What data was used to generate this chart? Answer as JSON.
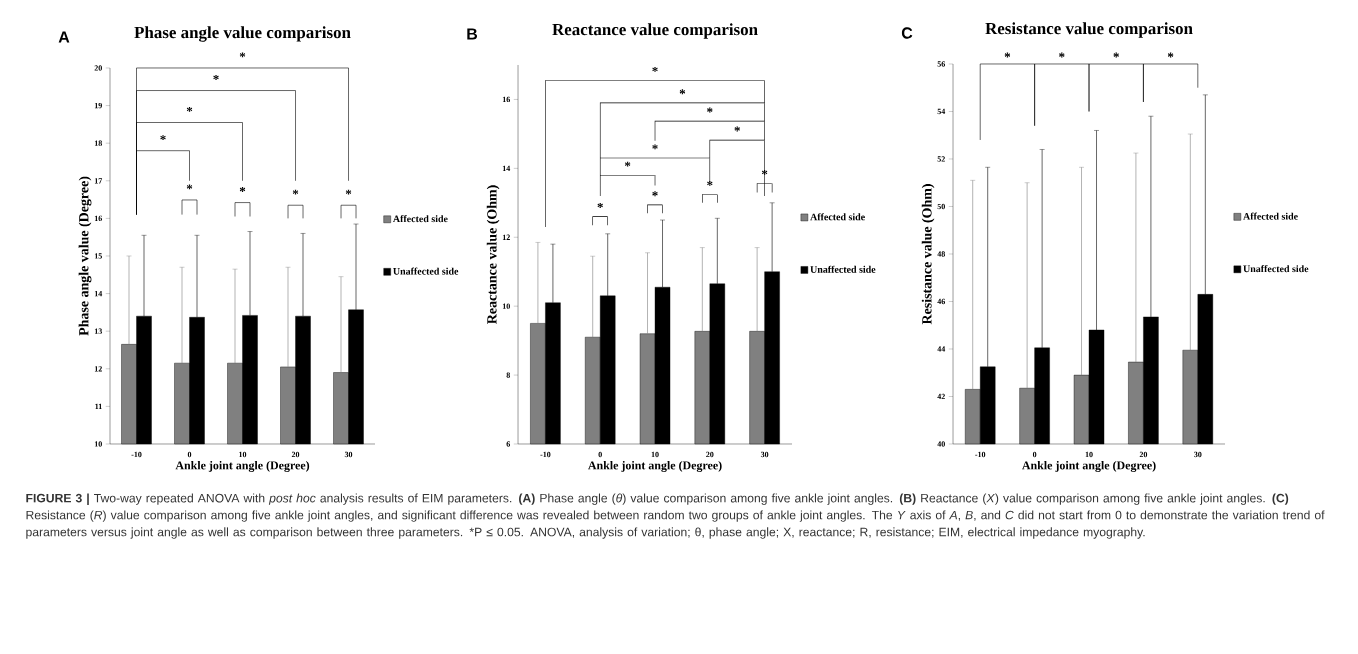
{
  "chart_data": [
    {
      "type": "bar",
      "title": "Phase angle value comparison",
      "xlabel": "Ankle joint angle (Degree)",
      "ylabel": "Phase angle value (Degree)",
      "categories": [
        "-10",
        "0",
        "10",
        "20",
        "30"
      ],
      "series": [
        {
          "name": "Affected side",
          "color": "#808080",
          "values": [
            12.65,
            12.15,
            12.15,
            12.05,
            11.9
          ],
          "errors": [
            [
              12.65,
              15.0
            ],
            [
              12.15,
              14.7
            ],
            [
              12.15,
              14.65
            ],
            [
              12.05,
              14.7
            ],
            [
              11.9,
              14.45
            ]
          ]
        },
        {
          "name": "Unaffected side",
          "color": "#000000",
          "values": [
            13.4,
            13.37,
            13.42,
            13.4,
            13.57
          ],
          "errors": [
            [
              13.4,
              15.55
            ],
            [
              13.37,
              15.55
            ],
            [
              13.42,
              15.65
            ],
            [
              13.4,
              15.6
            ],
            [
              13.57,
              15.85
            ]
          ]
        }
      ],
      "ylim": [
        10,
        20
      ],
      "yticks": [
        10,
        11,
        12,
        13,
        14,
        15,
        16,
        17,
        18,
        19,
        20
      ],
      "legend": "right",
      "annotations": [
        "A",
        "*",
        "*",
        "*",
        "*",
        "*",
        "*",
        "*",
        "*",
        "**FIGURE 3 |** Two-way repeated ANOVA with *post hoc* analysis results of EIM parameters. **(A)** Phase angle (*θ*) value comparison among five ankle joint angles. **(B)** Reactance (*X*) value comparison among five ankle joint angles. **(C)** Resistance (*R*) value comparison among five ankle joint angles, and significant difference was revealed between random two groups of ankle joint angles. The *Y* axis of *A*, *B*, and *C* did not start from 0 to demonstrate the variation trend of parameters versus joint angle as well as comparison between three parameters.",
        "*P ≤ 0.05. ANOVA, analysis of variation; θ, phase angle; X, reactance; R, resistance; EIM, electrical impedance myography."
      ]
    },
    {
      "type": "bar",
      "title": "Reactance value comparison",
      "xlabel": "Ankle joint angle (Degree)",
      "ylabel": "Reactance value (Ohm)",
      "categories": [
        "-10",
        "0",
        "10",
        "20",
        "30"
      ],
      "series": [
        {
          "name": "Affected side",
          "color": "#808080",
          "values": [
            9.5,
            9.1,
            9.2,
            9.27,
            9.27
          ],
          "errors": [
            [
              9.5,
              11.85
            ],
            [
              9.1,
              11.45
            ],
            [
              9.2,
              11.55
            ],
            [
              9.27,
              11.7
            ],
            [
              9.27,
              11.7
            ]
          ]
        },
        {
          "name": "Unaffected side",
          "color": "#000000",
          "values": [
            10.1,
            10.3,
            10.55,
            10.65,
            11.0
          ],
          "errors": [
            [
              10.1,
              11.8
            ],
            [
              10.3,
              12.1
            ],
            [
              10.55,
              12.5
            ],
            [
              10.65,
              12.55
            ],
            [
              11.0,
              13.0
            ]
          ]
        }
      ],
      "ylim": [
        6,
        17
      ],
      "yticks": [
        6,
        8,
        10,
        12,
        14,
        16
      ],
      "legend": "right",
      "annotations": [
        "B",
        "*",
        "*",
        "*",
        "*",
        "*",
        "*",
        "*",
        "*",
        "*",
        "*"
      ]
    },
    {
      "type": "bar",
      "title": "Resistance value comparison",
      "xlabel": "Ankle joint angle (Degree)",
      "ylabel": "Resistance value (Ohm)",
      "categories": [
        "-10",
        "0",
        "10",
        "20",
        "30"
      ],
      "series": [
        {
          "name": "Affected side",
          "color": "#808080",
          "values": [
            42.3,
            42.35,
            42.9,
            43.45,
            43.95
          ],
          "errors": [
            [
              42.3,
              51.1
            ],
            [
              42.35,
              51.0
            ],
            [
              42.9,
              51.65
            ],
            [
              43.45,
              52.25
            ],
            [
              43.95,
              53.05
            ]
          ]
        },
        {
          "name": "Unaffected side",
          "color": "#000000",
          "values": [
            43.25,
            44.05,
            44.8,
            45.35,
            46.3
          ],
          "errors": [
            [
              43.25,
              51.65
            ],
            [
              44.05,
              52.4
            ],
            [
              44.8,
              53.2
            ],
            [
              45.35,
              53.8
            ],
            [
              46.3,
              54.7
            ]
          ]
        }
      ],
      "ylim": [
        40,
        56
      ],
      "yticks": [
        40,
        42,
        44,
        46,
        48,
        50,
        52,
        54,
        56
      ],
      "legend": "right",
      "annotations": [
        "C",
        "*",
        "*",
        "*",
        "*"
      ]
    }
  ]
}
